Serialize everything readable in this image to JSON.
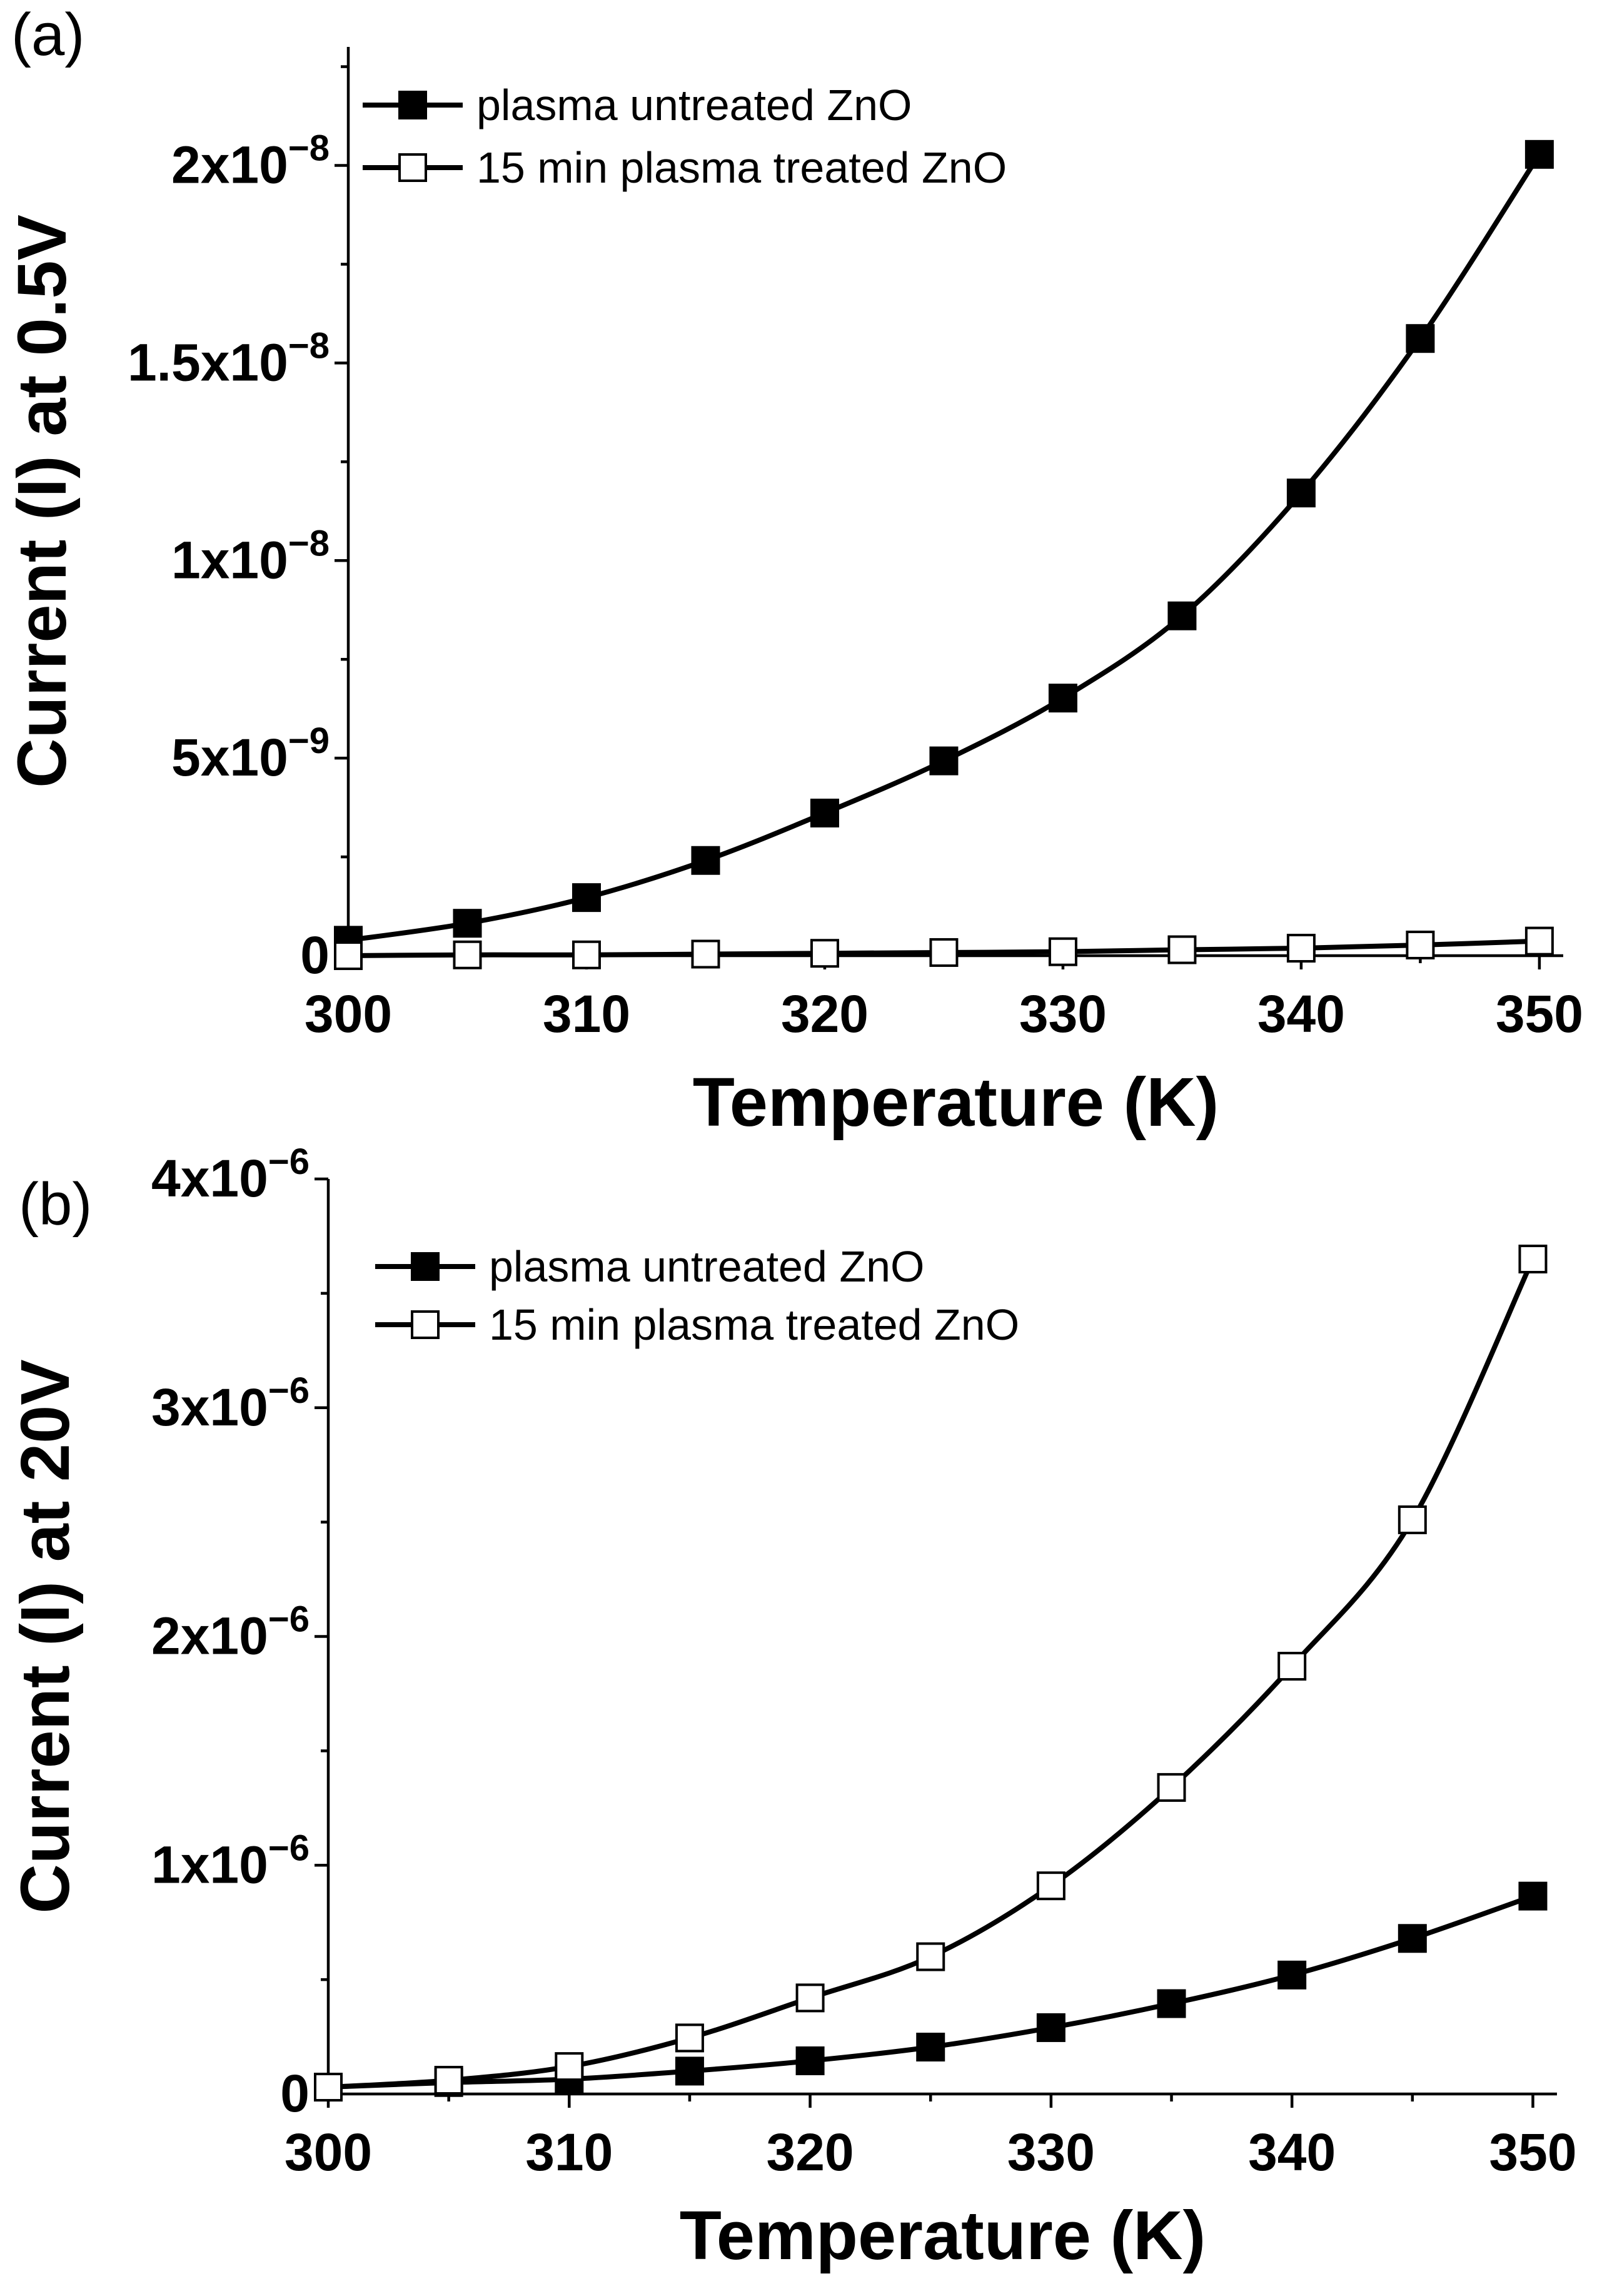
{
  "chart_data": [
    {
      "type": "line",
      "panel_label": "(a)",
      "xlabel": "Temperature (K)",
      "ylabel": "Current (I) at 0.5V",
      "xlim": [
        300,
        351
      ],
      "ylim": [
        0,
        2.3e-08
      ],
      "x_ticks": [
        300,
        310,
        320,
        330,
        340,
        350
      ],
      "x_tick_labels": [
        "300",
        "310",
        "320",
        "330",
        "340",
        "350"
      ],
      "y_ticks": [
        0,
        5e-09,
        1e-08,
        1.5e-08,
        2e-08
      ],
      "y_tick_labels": [
        {
          "base": "0",
          "exp": ""
        },
        {
          "base": "5x10",
          "exp": "−9"
        },
        {
          "base": "1x10",
          "exp": "−8"
        },
        {
          "base": "1.5x10",
          "exp": "−8"
        },
        {
          "base": "2x10",
          "exp": "−8"
        }
      ],
      "legend_position": "top-left",
      "series": [
        {
          "name": "plasma untreated ZnO",
          "marker": "filled-square",
          "x": [
            300,
            305,
            310,
            315,
            320,
            325,
            330,
            335,
            340,
            345,
            350
          ],
          "values": [
            3.9e-10,
            8.2e-10,
            1.47e-09,
            2.41e-09,
            3.61e-09,
            4.93e-09,
            6.52e-09,
            8.6e-09,
            1.171e-08,
            1.562e-08,
            2.028e-08
          ]
        },
        {
          "name": "15 min plasma treated ZnO",
          "marker": "open-square",
          "x": [
            300,
            305,
            310,
            315,
            320,
            325,
            330,
            335,
            340,
            345,
            350
          ],
          "values": [
            0,
            2e-11,
            2e-11,
            4e-11,
            6e-11,
            8e-11,
            1e-10,
            1.5e-10,
            1.9e-10,
            2.7e-10,
            3.7e-10
          ]
        }
      ]
    },
    {
      "type": "line",
      "panel_label": "(b)",
      "xlabel": "Temperature (K)",
      "ylabel": "Current (I) at 20V",
      "xlim": [
        300,
        351
      ],
      "ylim": [
        0,
        4e-06
      ],
      "x_ticks": [
        300,
        310,
        320,
        330,
        340,
        350
      ],
      "x_tick_labels": [
        "300",
        "310",
        "320",
        "330",
        "340",
        "350"
      ],
      "y_ticks": [
        0,
        1e-06,
        2e-06,
        3e-06,
        4e-06
      ],
      "y_tick_labels": [
        {
          "base": "0",
          "exp": ""
        },
        {
          "base": "1x10",
          "exp": "−6"
        },
        {
          "base": "2x10",
          "exp": "−6"
        },
        {
          "base": "3x10",
          "exp": "−6"
        },
        {
          "base": "4x10",
          "exp": "−6"
        }
      ],
      "legend_position": "top-left",
      "series": [
        {
          "name": "plasma untreated ZnO",
          "marker": "filled-square",
          "x": [
            300,
            305,
            310,
            315,
            320,
            325,
            330,
            335,
            340,
            345,
            350
          ],
          "values": [
            3e-08,
            5e-08,
            6.5e-08,
            1e-07,
            1.45e-07,
            2.05e-07,
            2.9e-07,
            3.95e-07,
            5.2e-07,
            6.8e-07,
            8.65e-07
          ]
        },
        {
          "name": "15 min plasma treated ZnO",
          "marker": "open-square",
          "x": [
            300,
            305,
            310,
            315,
            320,
            325,
            330,
            335,
            340,
            345,
            350
          ],
          "values": [
            3e-08,
            6e-08,
            1.2e-07,
            2.45e-07,
            4.2e-07,
            6e-07,
            9.1e-07,
            1.34e-06,
            1.87e-06,
            2.51e-06,
            3.65e-06
          ]
        }
      ]
    }
  ]
}
